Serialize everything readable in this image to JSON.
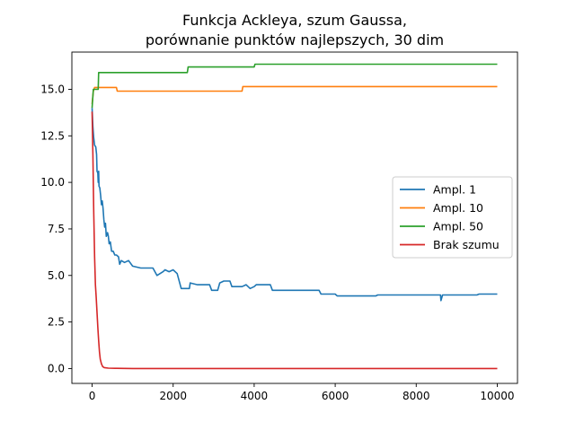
{
  "chart_data": {
    "type": "line",
    "title_line1": "Funkcja Ackleya, szum Gaussa,",
    "title_line2": "porównanie punktów najlepszych, 30 dim",
    "xlabel": "",
    "ylabel": "",
    "xlim": [
      -500,
      10500
    ],
    "ylim": [
      -0.8,
      17.0
    ],
    "xticks": [
      0,
      2000,
      4000,
      6000,
      8000,
      10000
    ],
    "xtick_labels": [
      "0",
      "2000",
      "4000",
      "6000",
      "8000",
      "10000"
    ],
    "yticks": [
      0.0,
      2.5,
      5.0,
      7.5,
      10.0,
      12.5,
      15.0
    ],
    "ytick_labels": [
      "0.0",
      "2.5",
      "5.0",
      "7.5",
      "10.0",
      "12.5",
      "15.0"
    ],
    "grid": false,
    "legend_position": "center-right",
    "series": [
      {
        "name": "Ampl. 1",
        "color": "#1f77b4",
        "points": [
          [
            0,
            14
          ],
          [
            20,
            13
          ],
          [
            40,
            12.4
          ],
          [
            60,
            12.0
          ],
          [
            90,
            11.9
          ],
          [
            110,
            11.5
          ],
          [
            120,
            10.6
          ],
          [
            140,
            10.5
          ],
          [
            150,
            10.0
          ],
          [
            160,
            10.6
          ],
          [
            170,
            9.8
          ],
          [
            190,
            9.7
          ],
          [
            210,
            9.3
          ],
          [
            230,
            8.8
          ],
          [
            250,
            9.0
          ],
          [
            270,
            8.6
          ],
          [
            290,
            8.0
          ],
          [
            310,
            7.6
          ],
          [
            330,
            7.8
          ],
          [
            350,
            7.1
          ],
          [
            380,
            7.3
          ],
          [
            400,
            7.1
          ],
          [
            420,
            6.7
          ],
          [
            450,
            6.8
          ],
          [
            480,
            6.3
          ],
          [
            520,
            6.3
          ],
          [
            560,
            6.1
          ],
          [
            600,
            6.1
          ],
          [
            650,
            6.0
          ],
          [
            680,
            5.6
          ],
          [
            720,
            5.8
          ],
          [
            800,
            5.7
          ],
          [
            900,
            5.8
          ],
          [
            1000,
            5.5
          ],
          [
            1200,
            5.4
          ],
          [
            1500,
            5.4
          ],
          [
            1600,
            5.0
          ],
          [
            1750,
            5.2
          ],
          [
            1800,
            5.3
          ],
          [
            1900,
            5.2
          ],
          [
            2000,
            5.3
          ],
          [
            2100,
            5.1
          ],
          [
            2200,
            4.3
          ],
          [
            2400,
            4.3
          ],
          [
            2420,
            4.6
          ],
          [
            2600,
            4.5
          ],
          [
            2900,
            4.5
          ],
          [
            2950,
            4.2
          ],
          [
            3100,
            4.2
          ],
          [
            3150,
            4.6
          ],
          [
            3250,
            4.7
          ],
          [
            3400,
            4.7
          ],
          [
            3450,
            4.4
          ],
          [
            3700,
            4.4
          ],
          [
            3800,
            4.5
          ],
          [
            3900,
            4.3
          ],
          [
            4000,
            4.4
          ],
          [
            4050,
            4.5
          ],
          [
            4400,
            4.5
          ],
          [
            4450,
            4.2
          ],
          [
            5600,
            4.2
          ],
          [
            5650,
            4.0
          ],
          [
            6000,
            4.0
          ],
          [
            6050,
            3.9
          ],
          [
            7000,
            3.9
          ],
          [
            7050,
            3.95
          ],
          [
            8600,
            3.95
          ],
          [
            8610,
            3.65
          ],
          [
            8650,
            3.95
          ],
          [
            9500,
            3.95
          ],
          [
            9550,
            4.0
          ],
          [
            10000,
            4.0
          ]
        ]
      },
      {
        "name": "Ampl. 10",
        "color": "#ff7f0e",
        "points": [
          [
            0,
            14.2
          ],
          [
            30,
            14.9
          ],
          [
            60,
            15.1
          ],
          [
            500,
            15.1
          ],
          [
            600,
            15.1
          ],
          [
            620,
            14.9
          ],
          [
            3700,
            14.9
          ],
          [
            3720,
            15.15
          ],
          [
            10000,
            15.15
          ]
        ]
      },
      {
        "name": "Ampl. 50",
        "color": "#2ca02c",
        "points": [
          [
            0,
            14.0
          ],
          [
            30,
            15.0
          ],
          [
            150,
            15.0
          ],
          [
            160,
            15.9
          ],
          [
            2350,
            15.9
          ],
          [
            2370,
            16.2
          ],
          [
            4000,
            16.2
          ],
          [
            4020,
            16.35
          ],
          [
            10000,
            16.35
          ]
        ]
      },
      {
        "name": "Brak szumu",
        "color": "#d62728",
        "points": [
          [
            0,
            13.8
          ],
          [
            20,
            11.5
          ],
          [
            40,
            8.5
          ],
          [
            60,
            6.0
          ],
          [
            80,
            4.5
          ],
          [
            100,
            3.8
          ],
          [
            120,
            3.0
          ],
          [
            140,
            2.2
          ],
          [
            160,
            1.5
          ],
          [
            180,
            0.9
          ],
          [
            200,
            0.5
          ],
          [
            230,
            0.25
          ],
          [
            260,
            0.1
          ],
          [
            300,
            0.05
          ],
          [
            400,
            0.02
          ],
          [
            600,
            0.01
          ],
          [
            1000,
            0.0
          ],
          [
            10000,
            0.0
          ]
        ]
      }
    ]
  }
}
